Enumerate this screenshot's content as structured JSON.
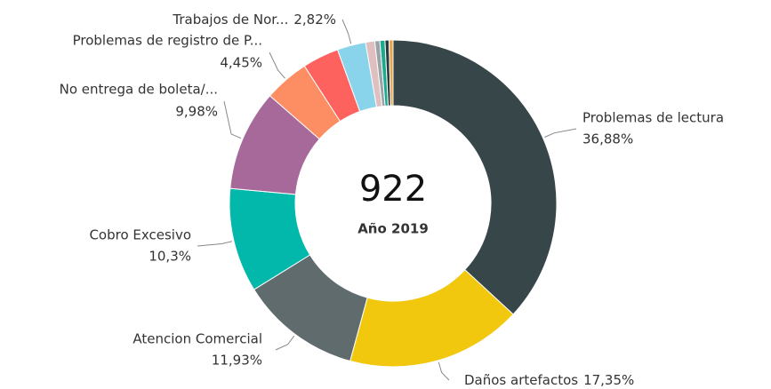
{
  "chart_data": {
    "type": "donut",
    "center_value": 922,
    "center_label": "Año 2019",
    "categories": [
      "Problemas de lectura",
      "Daños artefactos",
      "Atencion Comercial",
      "Cobro Excesivo",
      "No entrega de boleta/...",
      "Problemas de registro de P...",
      null,
      "Trabajos de Nor...",
      null,
      null,
      null,
      null,
      null
    ],
    "values": [
      36.88,
      17.35,
      11.93,
      10.3,
      9.98,
      4.45,
      3.6,
      2.82,
      0.9,
      0.5,
      0.5,
      0.4,
      0.39
    ],
    "value_labels": [
      "36,88%",
      "17,35%",
      "11,93%",
      "10,3%",
      "9,98%",
      "4,45%",
      null,
      "2,82%",
      null,
      null,
      null,
      null,
      null
    ],
    "colors": [
      "#374649",
      "#f2c80f",
      "#5f6b6d",
      "#01b8aa",
      "#a66999",
      "#fd8d62",
      "#fd625e",
      "#8ad4eb",
      "#dfbfbf",
      "#9aa3a5",
      "#1aab8f",
      "#2b3a3c",
      "#e8a44a"
    ]
  }
}
